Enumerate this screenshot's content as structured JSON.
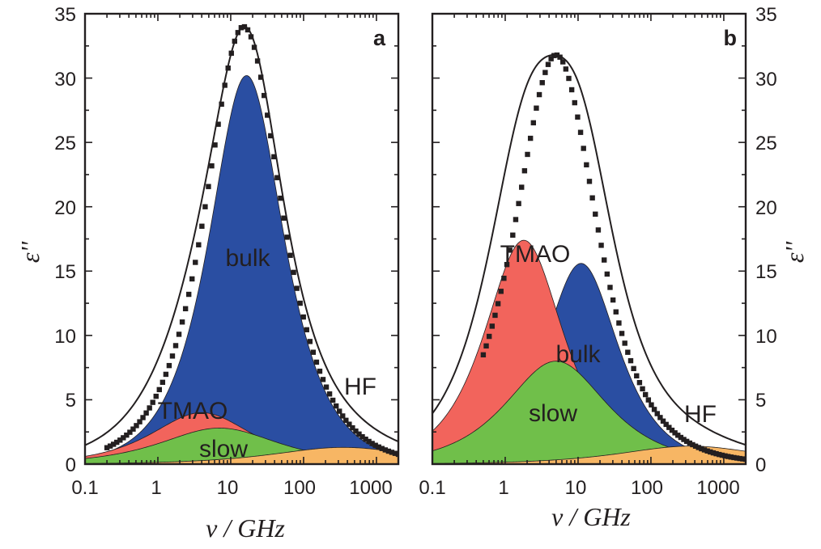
{
  "colors": {
    "bulk": "#2a4ea2",
    "tmao": "#f2645c",
    "slow": "#70bf4a",
    "hf": "#f7b664",
    "frame": "#231f20",
    "points": "#231f20"
  },
  "chart_data": [
    {
      "type": "area",
      "panel": "a",
      "xscale": "log",
      "xlim": [
        0.1,
        2000
      ],
      "ylim": [
        0,
        35
      ],
      "xticks": [
        "0.1",
        "1",
        "10",
        "100",
        "1000"
      ],
      "yticks": [
        "0",
        "5",
        "10",
        "15",
        "20",
        "25",
        "30",
        "35"
      ],
      "xlabel": "ν / GHz",
      "ylabel": "ε''",
      "grid": false,
      "total_fit": {
        "peak_x": 15,
        "peak_y": 34
      },
      "series": [
        {
          "name": "TMAO",
          "label": "TMAO",
          "peak_x": 4.0,
          "peak_y": 4.0,
          "alpha": 0.7
        },
        {
          "name": "slow",
          "label": "slow",
          "peak_x": 7.0,
          "peak_y": 2.8,
          "alpha": 0.6
        },
        {
          "name": "bulk",
          "label": "bulk",
          "peak_x": 16.5,
          "peak_y": 30.2,
          "alpha": 0.95
        },
        {
          "name": "HF",
          "label": "HF",
          "peak_x": 350,
          "peak_y": 1.3,
          "alpha": 0.5
        }
      ],
      "points": {
        "x_min": 0.2,
        "x_max": 2000,
        "peak_x": 15,
        "peak_y": 34,
        "alpha": 0.93
      }
    },
    {
      "type": "area",
      "panel": "b",
      "xscale": "log",
      "xlim": [
        0.1,
        2000
      ],
      "ylim": [
        0,
        35
      ],
      "xticks": [
        "0.1",
        "1",
        "10",
        "100",
        "1000"
      ],
      "yticks": [
        "0",
        "5",
        "10",
        "15",
        "20",
        "25",
        "30",
        "35"
      ],
      "xlabel": "ν / GHz",
      "ylabel": "ε''",
      "grid": false,
      "total_fit": {
        "peak_x": 5,
        "peak_y": 31.8
      },
      "series": [
        {
          "name": "TMAO",
          "label": "TMAO",
          "peak_x": 1.8,
          "peak_y": 17.4,
          "alpha": 0.9
        },
        {
          "name": "slow",
          "label": "slow",
          "peak_x": 5.0,
          "peak_y": 8.0,
          "alpha": 0.7
        },
        {
          "name": "bulk",
          "label": "bulk",
          "peak_x": 11.0,
          "peak_y": 15.6,
          "alpha": 0.95
        },
        {
          "name": "HF",
          "label": "HF",
          "peak_x": 350,
          "peak_y": 1.4,
          "alpha": 0.5
        }
      ],
      "points": {
        "x_min": 0.5,
        "x_max": 2000,
        "peak_x": 5,
        "peak_y": 31.8,
        "alpha": 0.88
      }
    }
  ]
}
